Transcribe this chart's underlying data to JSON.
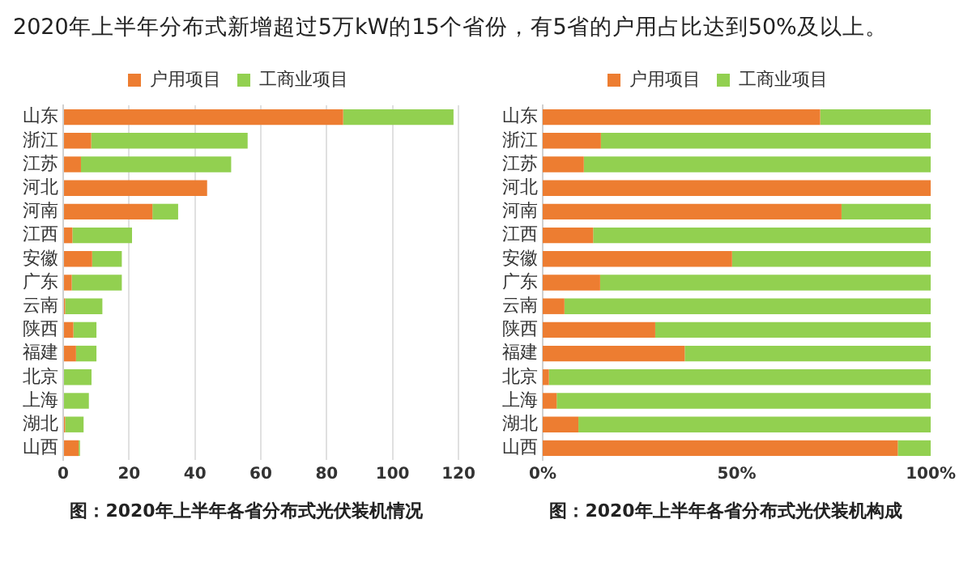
{
  "chart_data": [
    {
      "type": "bar",
      "orientation": "horizontal",
      "stacked": true,
      "title": "2020年上半年分布式新增超过5万kW的15个省份，有5省的户用占比达到50%及以上。",
      "categories": [
        "山东",
        "浙江",
        "江苏",
        "河北",
        "河南",
        "江西",
        "安徽",
        "广东",
        "云南",
        "陕西",
        "福建",
        "北京",
        "上海",
        "湖北",
        "山西"
      ],
      "series": [
        {
          "name": "户用项目",
          "color": "#ed7d31",
          "values": [
            85,
            8.5,
            5.4,
            43.7,
            27.1,
            2.8,
            8.8,
            2.6,
            0.6,
            3.1,
            3.9,
            null,
            null,
            0.6,
            4.7
          ]
        },
        {
          "name": "工商业项目",
          "color": "#92d050",
          "values": [
            33.5,
            47.5,
            45.6,
            0,
            7.8,
            18.1,
            9,
            15.2,
            11.3,
            7,
            6.2,
            8.6,
            7.8,
            5.6,
            0.4
          ]
        }
      ],
      "xlim": [
        0,
        120
      ],
      "xticks": [
        0,
        20,
        40,
        60,
        80,
        100,
        120
      ],
      "grid": "x",
      "legend": "top",
      "annotations": [
        "图：2020年上半年各省分布式光伏装机情况"
      ]
    },
    {
      "type": "bar",
      "orientation": "horizontal",
      "stacked": true,
      "categories": [
        "山东",
        "浙江",
        "江苏",
        "河北",
        "河南",
        "江西",
        "安徽",
        "广东",
        "云南",
        "陕西",
        "福建",
        "北京",
        "上海",
        "湖北",
        "山西"
      ],
      "series": [
        {
          "name": "户用项目",
          "color": "#ed7d31",
          "values": [
            71.5,
            15,
            10.6,
            100,
            77,
            13,
            48.8,
            14.8,
            5.6,
            29,
            36.6,
            1.6,
            3.6,
            9.2,
            91.5
          ]
        },
        {
          "name": "工商业项目",
          "color": "#92d050",
          "values": [
            28.5,
            85,
            89.4,
            0,
            23,
            87,
            51.2,
            85.2,
            94.4,
            71,
            63.4,
            98.4,
            96.4,
            90.8,
            8.5
          ]
        }
      ],
      "xlim": [
        0,
        100
      ],
      "xticks": [
        {
          "value": 0,
          "label": "0%"
        },
        {
          "value": 50,
          "label": "50%"
        },
        {
          "value": 100,
          "label": "100%"
        }
      ],
      "grid": false,
      "legend": "top",
      "annotations": [
        "图：2020年上半年各省分布式光伏装机构成"
      ]
    }
  ]
}
